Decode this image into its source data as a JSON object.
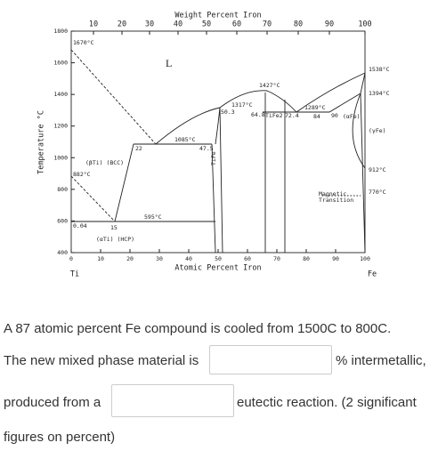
{
  "diagram": {
    "top_axis": {
      "title": "Weight Percent Iron",
      "ticks": [
        "10",
        "20",
        "30",
        "40",
        "50",
        "60",
        "70",
        "80",
        "90",
        "100"
      ]
    },
    "bottom_axis": {
      "title": "Atomic Percent Iron",
      "ticks": [
        "0",
        "10",
        "20",
        "30",
        "40",
        "50",
        "60",
        "70",
        "80",
        "90",
        "100"
      ]
    },
    "y_axis": {
      "title": "Temperature °C",
      "ticks": [
        "1800",
        "1600",
        "1400",
        "1200",
        "1000",
        "800",
        "600",
        "400"
      ]
    },
    "left_element": "Ti",
    "right_element": "Fe",
    "labels": [
      "1670°C",
      "L",
      "(βTi) (BCC)",
      "882°C",
      "22",
      "1085°C",
      "47.5",
      "TiFe",
      "1317°C",
      "50.3",
      "64.8",
      "1427°C",
      "1289°C",
      "TiFe2",
      "72.4",
      "84",
      "90",
      "(αFe)",
      "1538°C",
      "1394°C",
      "(γFe)",
      "912°C",
      "770°C",
      "Magnetic",
      "Transition",
      "0.04",
      "15",
      "(αTi) (HCP)",
      "595°C"
    ]
  },
  "question": {
    "line1": "A 87 atomic percent Fe compound is cooled from 1500C to 800C.",
    "before_blank1": "The new mixed phase material is",
    "after_blank1": "% intermetallic,",
    "before_blank2": "produced from a",
    "after_blank2": "eutectic reaction. (2 significant",
    "line4": "figures on percent)"
  }
}
